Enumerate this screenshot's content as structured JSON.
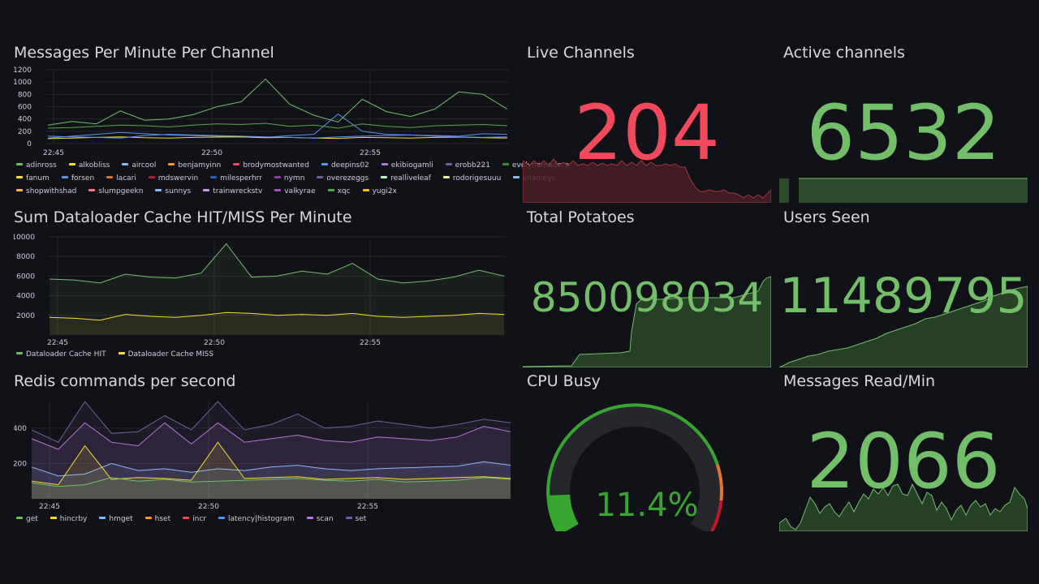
{
  "panels": {
    "messages": {
      "title": "Messages Per Minute Per Channel",
      "yticks": [
        "1200",
        "1000",
        "800",
        "600",
        "400",
        "200",
        "0"
      ],
      "xticks": [
        "22:45",
        "22:50",
        "22:55"
      ],
      "legend_rows": [
        [
          {
            "name": "adinross",
            "color": "#73bf69"
          },
          {
            "name": "alkobliss",
            "color": "#fade2a"
          },
          {
            "name": "aircool",
            "color": "#8ab8ff"
          },
          {
            "name": "benjamyinn",
            "color": "#ff9830"
          },
          {
            "name": "brodymostwanted",
            "color": "#f2495c"
          },
          {
            "name": "deepins02",
            "color": "#5794f2"
          },
          {
            "name": "ekibiogamli",
            "color": "#b877d9"
          },
          {
            "name": "erobb221",
            "color": "#705da0"
          },
          {
            "name": "evelynomadera",
            "color": "#37872d"
          }
        ],
        [
          {
            "name": "fanum",
            "color": "#fade2a"
          },
          {
            "name": "forsen",
            "color": "#5794f2"
          },
          {
            "name": "lacari",
            "color": "#e0752d"
          },
          {
            "name": "mdswervin",
            "color": "#c4162a"
          },
          {
            "name": "milesperhrr",
            "color": "#1f60c4"
          },
          {
            "name": "nymn",
            "color": "#8f3bb8"
          },
          {
            "name": "overezeggs",
            "color": "#705da0"
          },
          {
            "name": "realliveleaf",
            "color": "#c8f2c2"
          },
          {
            "name": "rodorigesuuu",
            "color": "#fff899"
          },
          {
            "name": "shamnyc",
            "color": "#8ab8ff"
          }
        ],
        [
          {
            "name": "shopwithshad",
            "color": "#ffb357"
          },
          {
            "name": "slumpgeekn",
            "color": "#ff7383"
          },
          {
            "name": "sunnys",
            "color": "#8ab8ff"
          },
          {
            "name": "trainwreckstv",
            "color": "#ca95e5"
          },
          {
            "name": "valkyrae",
            "color": "#a352cc"
          },
          {
            "name": "xqc",
            "color": "#56a64b"
          },
          {
            "name": "yugi2x",
            "color": "#f2cc0c"
          }
        ]
      ]
    },
    "dataloader": {
      "title": "Sum Dataloader Cache HIT/MISS Per Minute",
      "yticks": [
        "10000",
        "8000",
        "6000",
        "4000",
        "2000"
      ],
      "xticks": [
        "22:45",
        "22:50",
        "22:55"
      ],
      "legend": [
        {
          "name": "Dataloader Cache HIT",
          "color": "#73bf69"
        },
        {
          "name": "Dataloader Cache MISS",
          "color": "#fade2a"
        }
      ]
    },
    "redis": {
      "title": "Redis commands per second",
      "yticks": [
        "400",
        "200"
      ],
      "xticks": [
        "22:45",
        "22:50",
        "22:55"
      ],
      "legend": [
        {
          "name": "get",
          "color": "#73bf69"
        },
        {
          "name": "hincrby",
          "color": "#fade2a"
        },
        {
          "name": "hmget",
          "color": "#8ab8ff"
        },
        {
          "name": "hset",
          "color": "#ff9830"
        },
        {
          "name": "incr",
          "color": "#f2495c"
        },
        {
          "name": "latency|histogram",
          "color": "#5794f2"
        },
        {
          "name": "scan",
          "color": "#b877d9"
        },
        {
          "name": "set",
          "color": "#705da0"
        }
      ]
    },
    "live_channels": {
      "title": "Live Channels",
      "value": "204",
      "color": "#f2495c"
    },
    "active_channels": {
      "title": "Active channels",
      "value": "6532",
      "color": "#73bf69"
    },
    "total_potatoes": {
      "title": "Total Potatoes",
      "value": "850098034",
      "color": "#73bf69"
    },
    "users_seen": {
      "title": "Users Seen",
      "value": "11489795",
      "color": "#73bf69"
    },
    "cpu_busy": {
      "title": "CPU Busy",
      "value": "11.4%",
      "percent": 11.4,
      "color": "#37a62e"
    },
    "messages_read": {
      "title": "Messages Read/Min",
      "value": "2066",
      "color": "#73bf69"
    }
  },
  "chart_data": [
    {
      "type": "line",
      "title": "Messages Per Minute Per Channel",
      "ylim": [
        0,
        1200
      ],
      "x": [
        "22:42",
        "22:43",
        "22:44",
        "22:45",
        "22:46",
        "22:47",
        "22:48",
        "22:49",
        "22:50",
        "22:51",
        "22:52",
        "22:53",
        "22:54",
        "22:55",
        "22:56",
        "22:57",
        "22:58",
        "22:59",
        "23:00",
        "23:01"
      ],
      "series": [
        {
          "name": "adinross",
          "values": [
            300,
            360,
            320,
            530,
            380,
            400,
            470,
            600,
            680,
            1050,
            640,
            460,
            350,
            720,
            520,
            440,
            560,
            840,
            800,
            560
          ]
        },
        {
          "name": "deepins02",
          "values": [
            90,
            120,
            150,
            180,
            160,
            140,
            130,
            120,
            110,
            100,
            130,
            150,
            480,
            200,
            150,
            140,
            130,
            120,
            160,
            150
          ]
        },
        {
          "name": "xqc",
          "values": [
            250,
            260,
            280,
            300,
            290,
            270,
            300,
            320,
            310,
            330,
            280,
            300,
            250,
            320,
            280,
            260,
            290,
            300,
            310,
            290
          ]
        },
        {
          "name": "alkobliss",
          "values": [
            80,
            90,
            100,
            110,
            95,
            90,
            100,
            105,
            110,
            95,
            100,
            90,
            85,
            100,
            95,
            90,
            100,
            105,
            95,
            90
          ]
        },
        {
          "name": "forsen",
          "values": [
            120,
            110,
            100,
            90,
            130,
            150,
            140,
            130,
            120,
            110,
            100,
            90,
            110,
            120,
            130,
            140,
            120,
            110,
            100,
            110
          ]
        }
      ]
    },
    {
      "type": "area",
      "title": "Sum Dataloader Cache HIT/MISS Per Minute",
      "ylim": [
        0,
        10000
      ],
      "x": [
        "22:43",
        "22:44",
        "22:45",
        "22:46",
        "22:47",
        "22:48",
        "22:49",
        "22:50",
        "22:51",
        "22:52",
        "22:53",
        "22:54",
        "22:55",
        "22:56",
        "22:57",
        "22:58",
        "22:59",
        "23:00",
        "23:01"
      ],
      "series": [
        {
          "name": "Dataloader Cache HIT",
          "values": [
            5700,
            5600,
            5300,
            6200,
            5900,
            5800,
            6300,
            9300,
            5900,
            6000,
            6500,
            6200,
            7300,
            5700,
            5300,
            5500,
            5900,
            6600,
            6000
          ]
        },
        {
          "name": "Dataloader Cache MISS",
          "values": [
            1800,
            1700,
            1500,
            2100,
            1900,
            1800,
            2000,
            2300,
            2200,
            2000,
            2100,
            2000,
            2200,
            1900,
            1800,
            1900,
            2000,
            2200,
            2100
          ]
        }
      ]
    },
    {
      "type": "area",
      "title": "Redis commands per second",
      "ylim": [
        0,
        500
      ],
      "x": [
        "22:43",
        "22:44",
        "22:45",
        "22:46",
        "22:47",
        "22:48",
        "22:49",
        "22:50",
        "22:51",
        "22:52",
        "22:53",
        "22:54",
        "22:55",
        "22:56",
        "22:57",
        "22:58",
        "22:59",
        "23:00",
        "23:01"
      ],
      "series": [
        {
          "name": "get",
          "values": [
            90,
            70,
            80,
            120,
            100,
            110,
            95,
            100,
            105,
            110,
            115,
            105,
            100,
            110,
            95,
            100,
            105,
            120,
            110
          ]
        },
        {
          "name": "hincrby",
          "values": [
            100,
            80,
            300,
            110,
            120,
            115,
            105,
            320,
            115,
            120,
            125,
            110,
            115,
            120,
            110,
            115,
            120,
            125,
            115
          ]
        },
        {
          "name": "hmget",
          "values": [
            180,
            130,
            140,
            200,
            160,
            170,
            150,
            170,
            160,
            180,
            190,
            170,
            160,
            170,
            175,
            180,
            185,
            210,
            190
          ]
        },
        {
          "name": "scan",
          "values": [
            340,
            280,
            430,
            320,
            300,
            430,
            310,
            430,
            320,
            340,
            360,
            330,
            320,
            350,
            340,
            330,
            350,
            410,
            380
          ]
        },
        {
          "name": "set",
          "values": [
            390,
            320,
            550,
            370,
            380,
            470,
            390,
            550,
            390,
            420,
            480,
            400,
            410,
            440,
            420,
            400,
            420,
            450,
            430
          ]
        }
      ]
    }
  ]
}
